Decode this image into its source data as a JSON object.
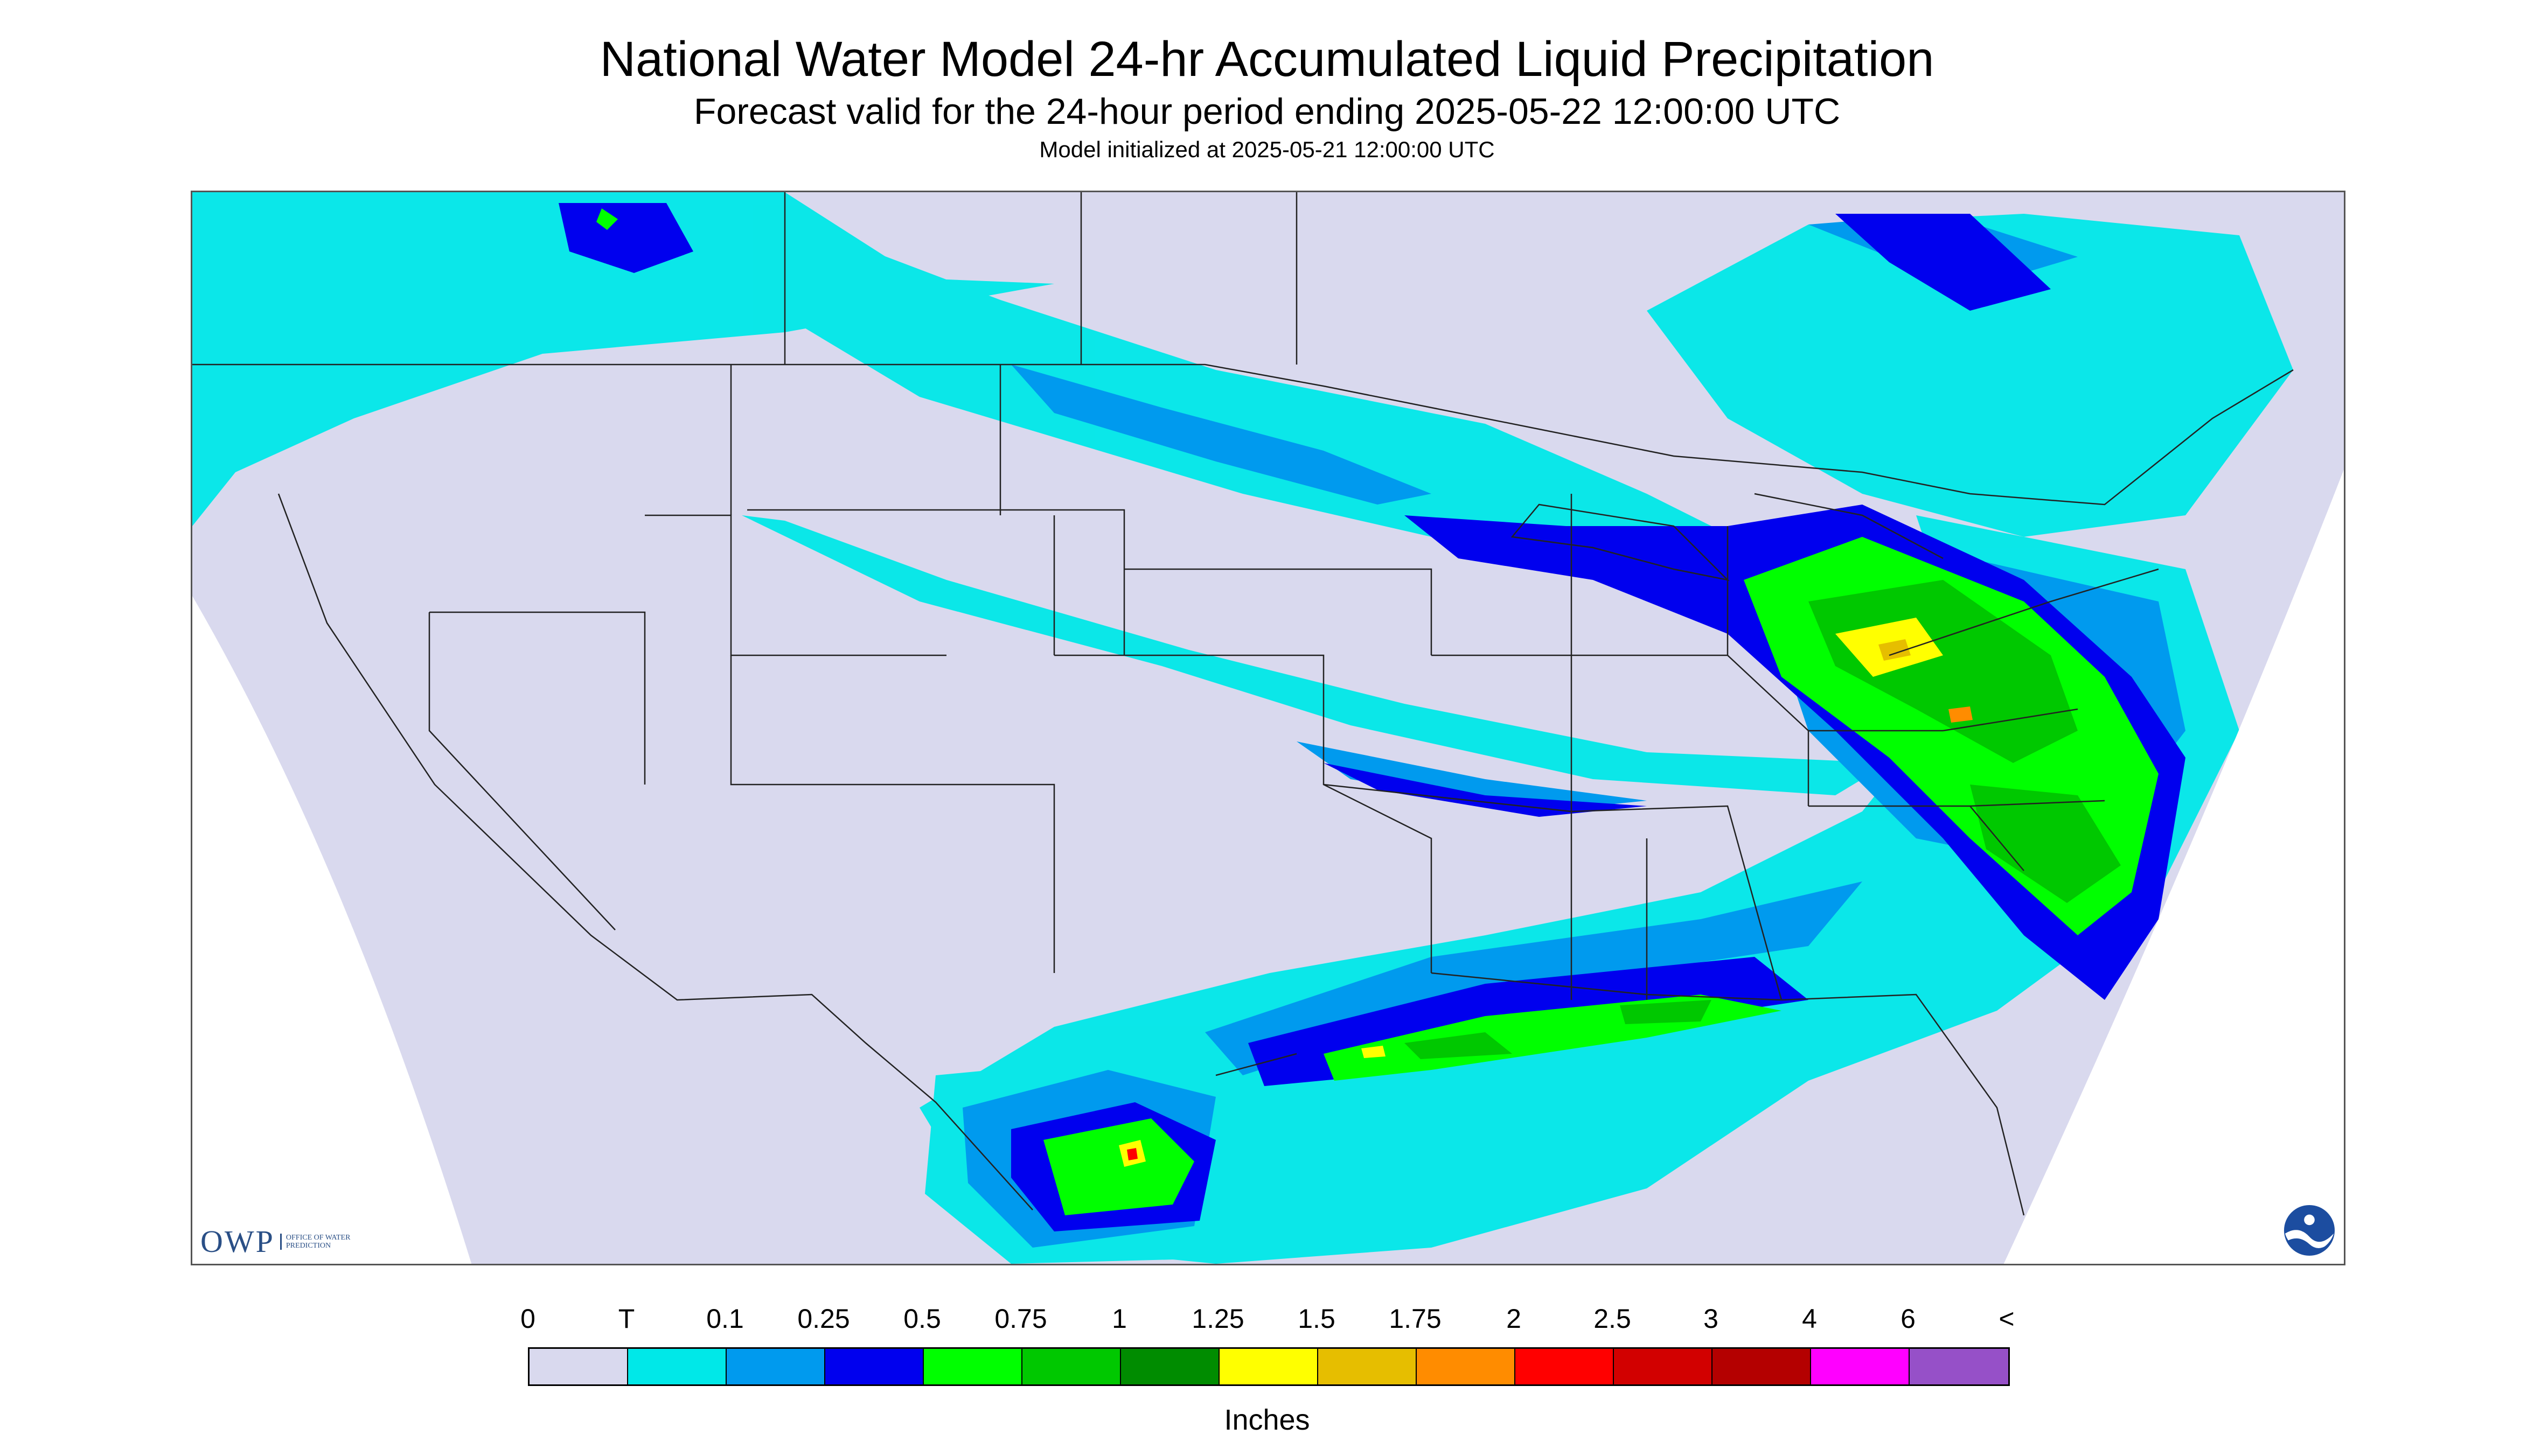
{
  "header": {
    "title": "National Water Model 24-hr Accumulated Liquid Precipitation",
    "subtitle": "Forecast valid for the 24-hour period ending 2025-05-22 12:00:00 UTC",
    "init": "Model initialized at 2025-05-21 12:00:00 UTC"
  },
  "legend": {
    "labels": [
      "0",
      "T",
      "0.1",
      "0.25",
      "0.5",
      "0.75",
      "1",
      "1.25",
      "1.5",
      "1.75",
      "2",
      "2.5",
      "3",
      "4",
      "6",
      "<"
    ],
    "colors": [
      "#d9d9ee",
      "#00e8e8",
      "#009aee",
      "#0000ee",
      "#00ff00",
      "#00c800",
      "#008c00",
      "#ffff00",
      "#e6be00",
      "#ff8c00",
      "#ff0000",
      "#d20000",
      "#b40000",
      "#ff00ff",
      "#9650c8"
    ],
    "units": "Inches"
  },
  "logos": {
    "owp_text": "OWP",
    "owp_subtext": "OFFICE OF WATER PREDICTION",
    "noaa_text": "NOAA"
  },
  "map": {
    "background_color": "#d9d9ee",
    "outside_domain_color": "#ffffff",
    "boundary_color": "#222222"
  }
}
